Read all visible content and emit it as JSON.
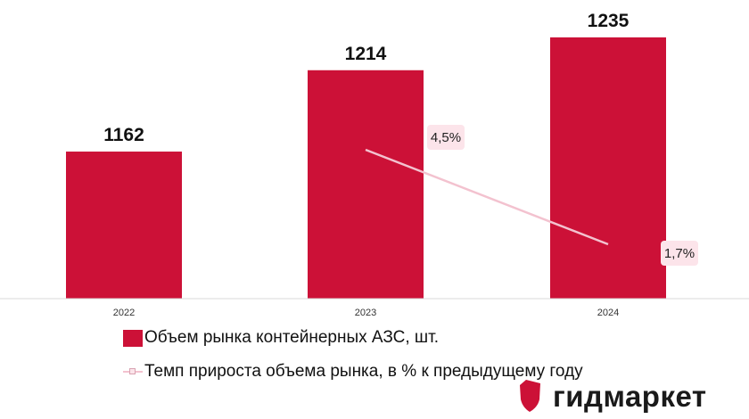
{
  "chart_data": {
    "type": "bar",
    "categories": [
      "2022",
      "2023",
      "2024"
    ],
    "series": [
      {
        "name": "Объем рынка контейнерных АЗС, шт.",
        "type": "bar",
        "values": [
          1162,
          1214,
          1235
        ],
        "labels": [
          "1162",
          "1214",
          "1235"
        ],
        "color": "#cc1137"
      },
      {
        "name": "Темп прироста объема рынка, в % к предыдущему году",
        "type": "line",
        "x": [
          "2023",
          "2024"
        ],
        "values": [
          4.5,
          1.7
        ],
        "labels": [
          "4,5%",
          "1,7%"
        ],
        "color": "#f3c2cf"
      }
    ],
    "grid": false,
    "legend": "bottom-left"
  },
  "logo": {
    "text": "гидмаркет",
    "color": "#cc1137"
  }
}
